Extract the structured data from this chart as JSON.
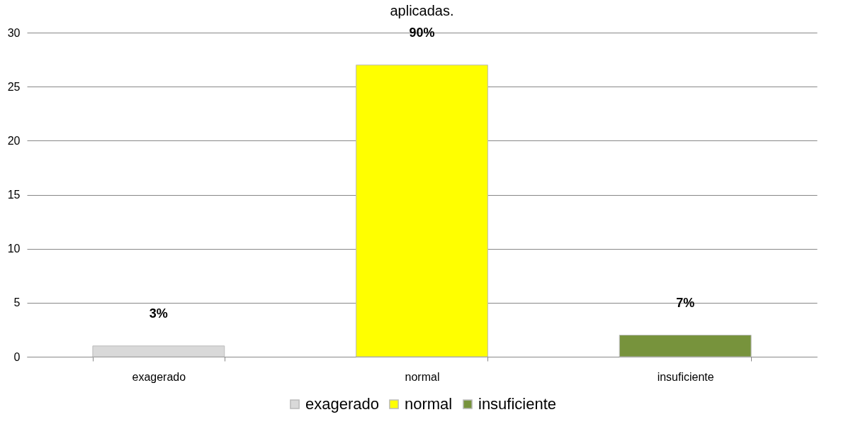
{
  "chart_data": {
    "type": "bar",
    "title": "aplicadas.",
    "categories": [
      "exagerado",
      "normal",
      "insuficiente"
    ],
    "series": [
      {
        "name": "exagerado",
        "color": "#d9d9d9",
        "values": [
          1,
          null,
          null
        ]
      },
      {
        "name": "normal",
        "color": "#ffff00",
        "values": [
          null,
          27,
          null
        ]
      },
      {
        "name": "insuficiente",
        "color": "#77933c",
        "values": [
          null,
          null,
          2
        ]
      }
    ],
    "annotations": [
      "3%",
      "90%",
      "7%"
    ],
    "ylim": [
      0,
      30
    ],
    "yticks": [
      0,
      5,
      10,
      15,
      20,
      25,
      30
    ],
    "grid": "y",
    "legend": "bottom"
  }
}
